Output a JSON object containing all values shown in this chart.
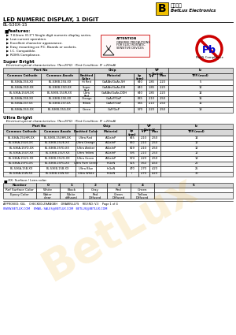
{
  "title": "LED NUMERIC DISPLAY, 1 DIGIT",
  "subtitle": "BL-S30X-15",
  "company_name": "BetLux Electronics",
  "company_chinese": "百岆光电",
  "features_title": "Features:",
  "features": [
    "7.62mm (0.3\") Single digit numeric display series.",
    "Low current operation.",
    "Excellent character appearance.",
    "Easy mounting on P.C. Boards or sockets.",
    "I.C. Compatible.",
    "ROHS Compliance."
  ],
  "super_bright_title": "Super Bright",
  "super_bright_subtitle": "   Electrical-optical characteristics: (Ta=25℃)  (Test Condition: IF =20mA)",
  "sb_col_headers": [
    "Common Cathode",
    "Common Anode",
    "Emitted\nColor",
    "Material",
    "λp\n(nm)",
    "Typ",
    "Max",
    "TYP.(mcd)"
  ],
  "sb_rows": [
    [
      "BL-S36A-15S-XX",
      "BL-S36B-15S-XX",
      "Hi Red",
      "GaAlAs/GaAs,SH",
      "640",
      "1.85",
      "2.20",
      "5"
    ],
    [
      "BL-S36A-15D-XX",
      "BL-S36B-15D-XX",
      "Super\nRed",
      "GaAlAs/GaAs,DH",
      "640",
      "1.85",
      "2.20",
      "12"
    ],
    [
      "BL-S36A-15UR-XX",
      "BL-S36B-15UR-XX",
      "Ultra\nRed",
      "GaAlAs/GaAs,DDH",
      "640",
      "1.85",
      "2.20",
      "14"
    ],
    [
      "BL-S36A-15E-XX",
      "BL-S36B-15E-XX",
      "Orange",
      "GaAsP/GaP",
      "635",
      "2.10",
      "2.50",
      "16"
    ],
    [
      "BL-S36A-15Y-XX",
      "BL-S36B-15Y-XX",
      "Yellow",
      "GaAsP/GaP",
      "585",
      "2.10",
      "2.50",
      "16"
    ],
    [
      "BL-S36A-15G-XX",
      "BL-S36B-15G-XX",
      "Green",
      "GaP/GaP",
      "570",
      "2.20",
      "2.50",
      "18"
    ]
  ],
  "ultra_bright_title": "Ultra Bright",
  "ultra_bright_subtitle": "   Electrical-optical characteristics: (Ta=25℃)  (Test Condition: IF =20mA)",
  "ub_col_headers": [
    "Common Cathode",
    "Common Anode",
    "Emitted Color",
    "Material",
    "λp\n(nm)",
    "Typ",
    "Max",
    "TYP.(mcd)"
  ],
  "ub_rows": [
    [
      "BL-S36A-15UHR-XX",
      "BL-S36B-15UHR-XX",
      "Ultra Red",
      "AlGaInP",
      "645",
      "2.10",
      "2.50",
      "14"
    ],
    [
      "BL-S36A-15UE-XX",
      "BL-S36B-15UE-XX",
      "Ultra Orange",
      "AlGaInP",
      "630",
      "2.10",
      "2.50",
      "12"
    ],
    [
      "BL-S36A-15YO-XX",
      "BL-S36B-15YO-XX",
      "Ultra Amber",
      "AlGaInP",
      "619",
      "2.10",
      "2.50",
      "12"
    ],
    [
      "BL-S36A-15UY-XX",
      "BL-S36B-15UY-XX",
      "Ultra Yellow",
      "AlGaInP",
      "595",
      "2.10",
      "2.50",
      "12"
    ],
    [
      "BL-S36A-15UG-XX",
      "BL-S36B-15UG-XX",
      "Ultra Green",
      "AlGaInP",
      "574",
      "2.20",
      "2.50",
      "18"
    ],
    [
      "BL-S36A-15PG-XX",
      "BL-S36B-15PG-XX",
      "Ultra Pure Green",
      "InGaN",
      "525",
      "3.60",
      "4.50",
      "22"
    ],
    [
      "BL-S36A-15B-XX",
      "BL-S36B-15B-XX",
      "Ultra Blue",
      "InGaN",
      "470",
      "2.70",
      "4.20",
      "25"
    ],
    [
      "BL-S36A-15W-XX",
      "BL-S36B-15W-XX",
      "Ultra White",
      "InGaN",
      "/",
      "2.70",
      "4.20",
      "30"
    ]
  ],
  "suffix_title": "-XX: Surface / Lens color.",
  "suffix_headers": [
    "Number",
    "0",
    "1",
    "2",
    "3",
    "4",
    "5"
  ],
  "suffix_row1": [
    "Ref Surface Color",
    "White",
    "Black",
    "Gray",
    "Red",
    "Green",
    ""
  ],
  "suffix_row2": [
    "Epoxy Color",
    "Water\nclear",
    "White\ndiffused",
    "Red\nDiffused",
    "Green\nDiffused",
    "Yellow\nDiffused",
    ""
  ],
  "footer": "APPROVED: XUL    CHECKED:ZHANGBH    DRAWN:LLFS    REV.NO: V.3    Page 1 of 4",
  "footer_web": "WWW.BETLUX.COM    EMAIL: SALES@BETLUX.COM   BETLUX@BETLUX.COM",
  "bg_color": "#ffffff",
  "rohs_red": "#cc0000",
  "rohs_blue": "#0000cc",
  "logo_yellow": "#f0c000",
  "watermark_color": "#e8a000"
}
